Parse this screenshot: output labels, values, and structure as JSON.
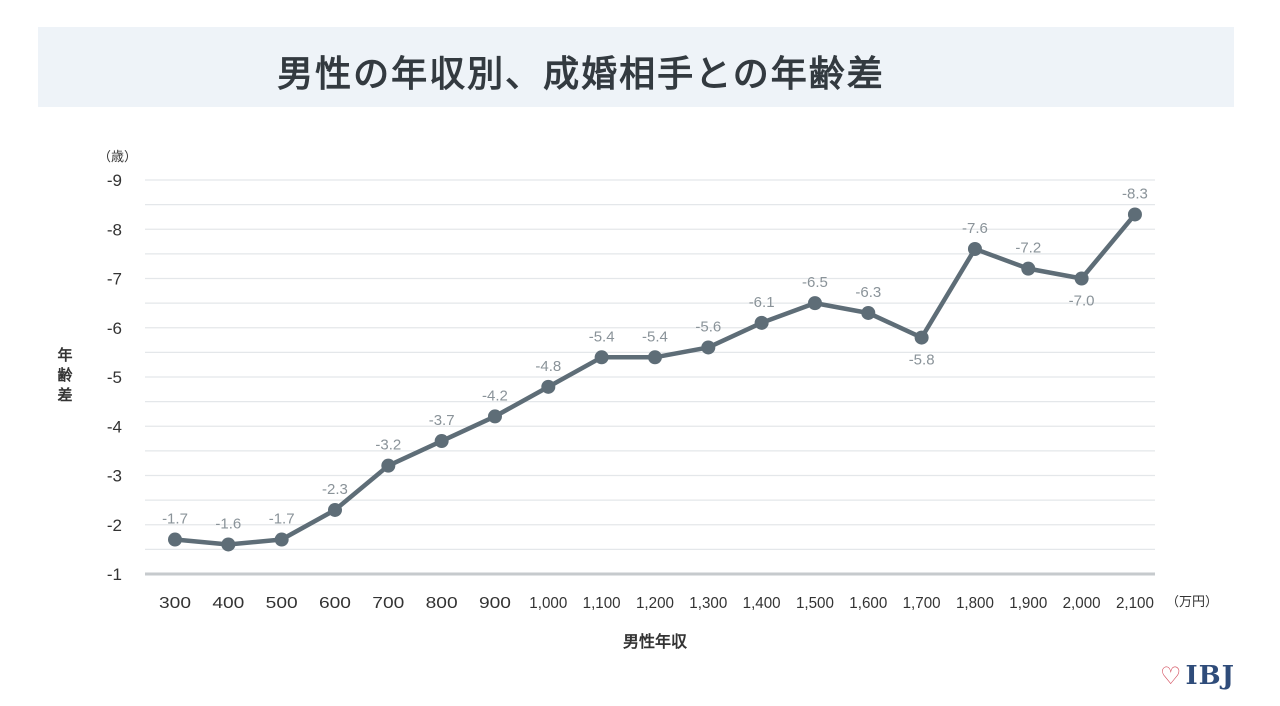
{
  "title": "男性の年収別、成婚相手との年齢差",
  "logo": {
    "heart_icon": "♡",
    "text": "IBJ"
  },
  "chart_data": {
    "type": "line",
    "title": "男性の年収別、成婚相手との年齢差",
    "xlabel": "男性年収",
    "x_unit": "（万円）",
    "ylabel": "年齢差",
    "y_unit": "（歳）",
    "categories": [
      "300",
      "400",
      "500",
      "600",
      "700",
      "800",
      "900",
      "1,000",
      "1,100",
      "1,200",
      "1,300",
      "1,400",
      "1,500",
      "1,600",
      "1,700",
      "1,800",
      "1,900",
      "2,000",
      "2,100"
    ],
    "values": [
      -1.7,
      -1.6,
      -1.7,
      -2.3,
      -3.2,
      -3.7,
      -4.2,
      -4.8,
      -5.4,
      -5.4,
      -5.6,
      -6.1,
      -6.5,
      -6.3,
      -5.8,
      -7.6,
      -7.2,
      -7.0,
      -8.3
    ],
    "data_labels": [
      "-1.7",
      "-1.6",
      "-1.7",
      "-2.3",
      "-3.2",
      "-3.7",
      "-4.2",
      "-4.8",
      "-5.4",
      "-5.4",
      "-5.6",
      "-6.1",
      "-6.5",
      "-6.3",
      "-5.8",
      "-7.6",
      "-7.2",
      "-7.0",
      "-8.3"
    ],
    "label_below": [
      14,
      17
    ],
    "y_ticks": [
      "-1",
      "-2",
      "-3",
      "-4",
      "-5",
      "-6",
      "-7",
      "-8",
      "-9"
    ],
    "ylim": [
      -1,
      -9
    ],
    "grid": true,
    "line_color": "#5e6d77",
    "grid_color": "#e4e7ea",
    "axis_color": "#c6cacd",
    "label_color": "#8a9399",
    "tick_color": "#333333"
  }
}
